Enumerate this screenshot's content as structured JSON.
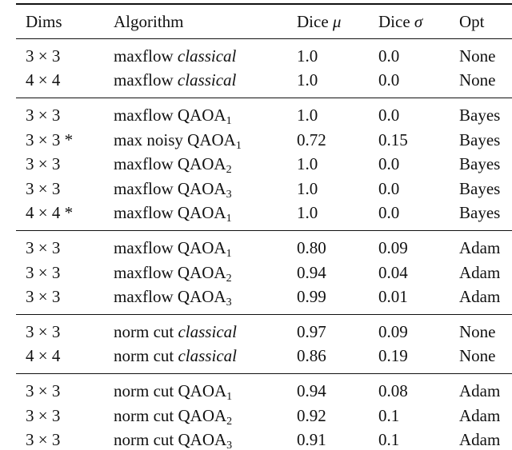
{
  "table": {
    "header": [
      "Dims",
      "Algorithm",
      {
        "text": "Dice",
        "italic": "μ"
      },
      {
        "text": "Dice",
        "italic": "σ"
      },
      "Opt"
    ],
    "groups": [
      [
        [
          "3 × 3",
          {
            "text": "maxflow",
            "italic": "classical"
          },
          "1.0",
          "0.0",
          "None"
        ],
        [
          "4 × 4",
          {
            "text": "maxflow",
            "italic": "classical"
          },
          "1.0",
          "0.0",
          "None"
        ]
      ],
      [
        [
          "3 × 3",
          {
            "text": "maxflow QAOA",
            "sub": "1"
          },
          "1.0",
          "0.0",
          "Bayes"
        ],
        [
          "3 × 3 *",
          {
            "text": "max noisy QAOA",
            "sub": "1"
          },
          "0.72",
          "0.15",
          "Bayes"
        ],
        [
          "3 × 3",
          {
            "text": "maxflow QAOA",
            "sub": "2"
          },
          "1.0",
          "0.0",
          "Bayes"
        ],
        [
          "3 × 3",
          {
            "text": "maxflow QAOA",
            "sub": "3"
          },
          "1.0",
          "0.0",
          "Bayes"
        ],
        [
          "4 × 4 *",
          {
            "text": "maxflow QAOA",
            "sub": "1"
          },
          "1.0",
          "0.0",
          "Bayes"
        ]
      ],
      [
        [
          "3 × 3",
          {
            "text": "maxflow QAOA",
            "sub": "1"
          },
          "0.80",
          "0.09",
          "Adam"
        ],
        [
          "3 × 3",
          {
            "text": "maxflow QAOA",
            "sub": "2"
          },
          "0.94",
          "0.04",
          "Adam"
        ],
        [
          "3 × 3",
          {
            "text": "maxflow QAOA",
            "sub": "3"
          },
          "0.99",
          "0.01",
          "Adam"
        ]
      ],
      [
        [
          "3 × 3",
          {
            "text": "norm cut",
            "italic": "classical"
          },
          "0.97",
          "0.09",
          "None"
        ],
        [
          "4 × 4",
          {
            "text": "norm cut",
            "italic": "classical"
          },
          "0.86",
          "0.19",
          "None"
        ]
      ],
      [
        [
          "3 × 3",
          {
            "text": "norm cut QAOA",
            "sub": "1"
          },
          "0.94",
          "0.08",
          "Adam"
        ],
        [
          "3 × 3",
          {
            "text": "norm cut QAOA",
            "sub": "2"
          },
          "0.92",
          "0.1",
          "Adam"
        ],
        [
          "3 × 3",
          {
            "text": "norm cut QAOA",
            "sub": "3"
          },
          "0.91",
          "0.1",
          "Adam"
        ]
      ]
    ]
  }
}
